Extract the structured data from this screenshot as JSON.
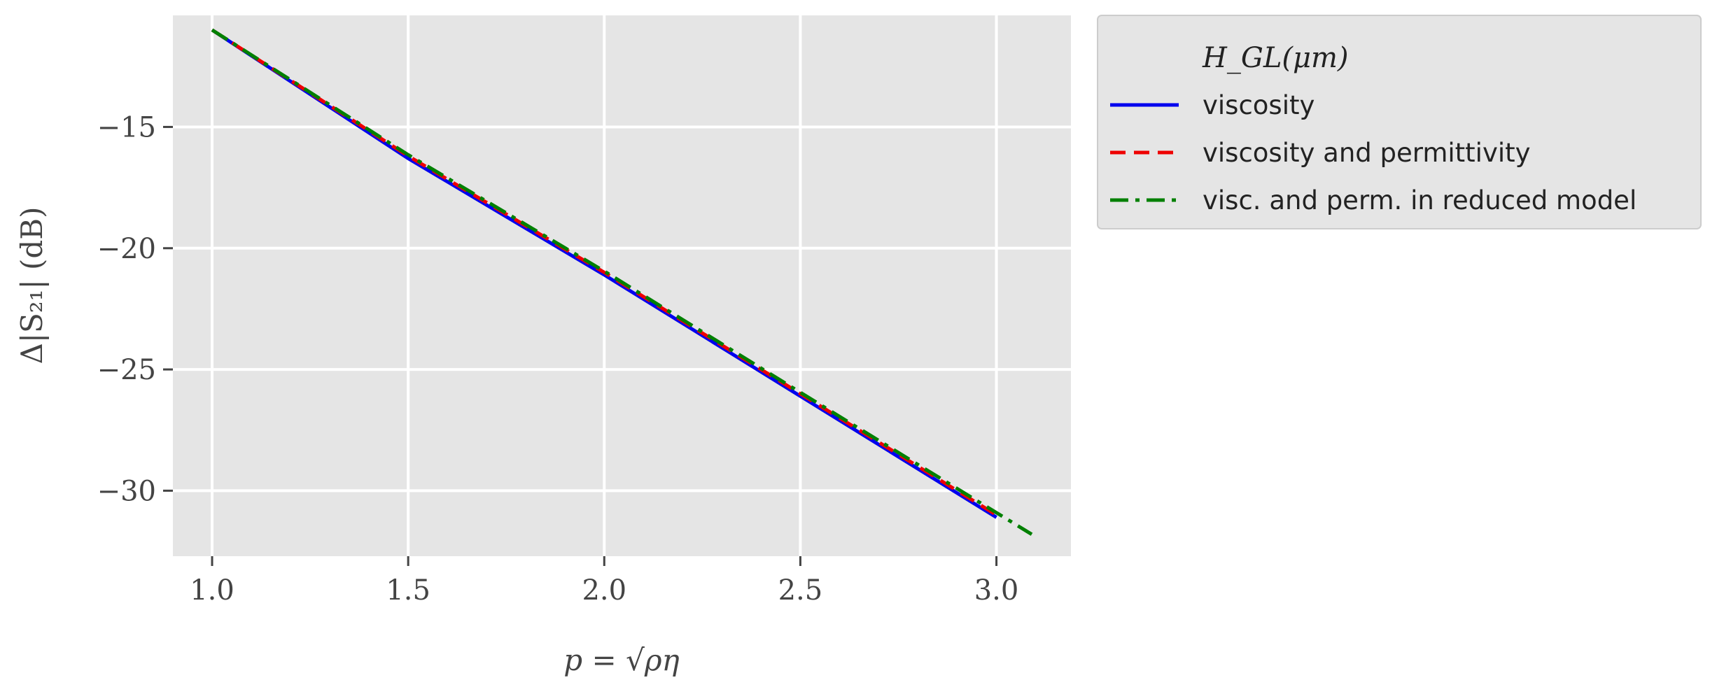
{
  "chart_data": {
    "type": "line",
    "xlabel": "p = √ρη",
    "ylabel": "Δ|S₂₁| (dB)",
    "xlim": [
      0.9,
      3.19
    ],
    "ylim": [
      -32.7,
      -10.4
    ],
    "xticks": [
      1.0,
      1.5,
      2.0,
      2.5,
      3.0
    ],
    "xtick_labels": [
      "1.0",
      "1.5",
      "2.0",
      "2.5",
      "3.0"
    ],
    "yticks": [
      -15,
      -20,
      -25,
      -30
    ],
    "ytick_labels": [
      "−15",
      "−20",
      "−25",
      "−30"
    ],
    "grid": true,
    "legend": {
      "title": "H_GL(μm)",
      "placement": "outside-right-top",
      "entries": [
        "viscosity",
        "viscosity and permittivity",
        "visc. and perm. in reduced model"
      ]
    },
    "series": [
      {
        "name": "viscosity",
        "color": "#0000ee",
        "style": "solid",
        "x": [
          1.0,
          1.5,
          2.0,
          2.5,
          3.0
        ],
        "y": [
          -11.0,
          -16.3,
          -21.1,
          -26.1,
          -31.1
        ]
      },
      {
        "name": "viscosity and permittivity",
        "color": "#ee0000",
        "style": "dashed",
        "x": [
          1.0,
          1.5,
          2.0,
          2.5,
          3.0
        ],
        "y": [
          -11.0,
          -16.2,
          -21.0,
          -26.0,
          -31.0
        ]
      },
      {
        "name": "visc. and perm. in reduced model",
        "color": "#008000",
        "style": "dashdot",
        "x": [
          1.0,
          1.5,
          2.0,
          2.5,
          3.09
        ],
        "y": [
          -11.0,
          -16.15,
          -20.95,
          -25.95,
          -31.8
        ]
      }
    ]
  }
}
